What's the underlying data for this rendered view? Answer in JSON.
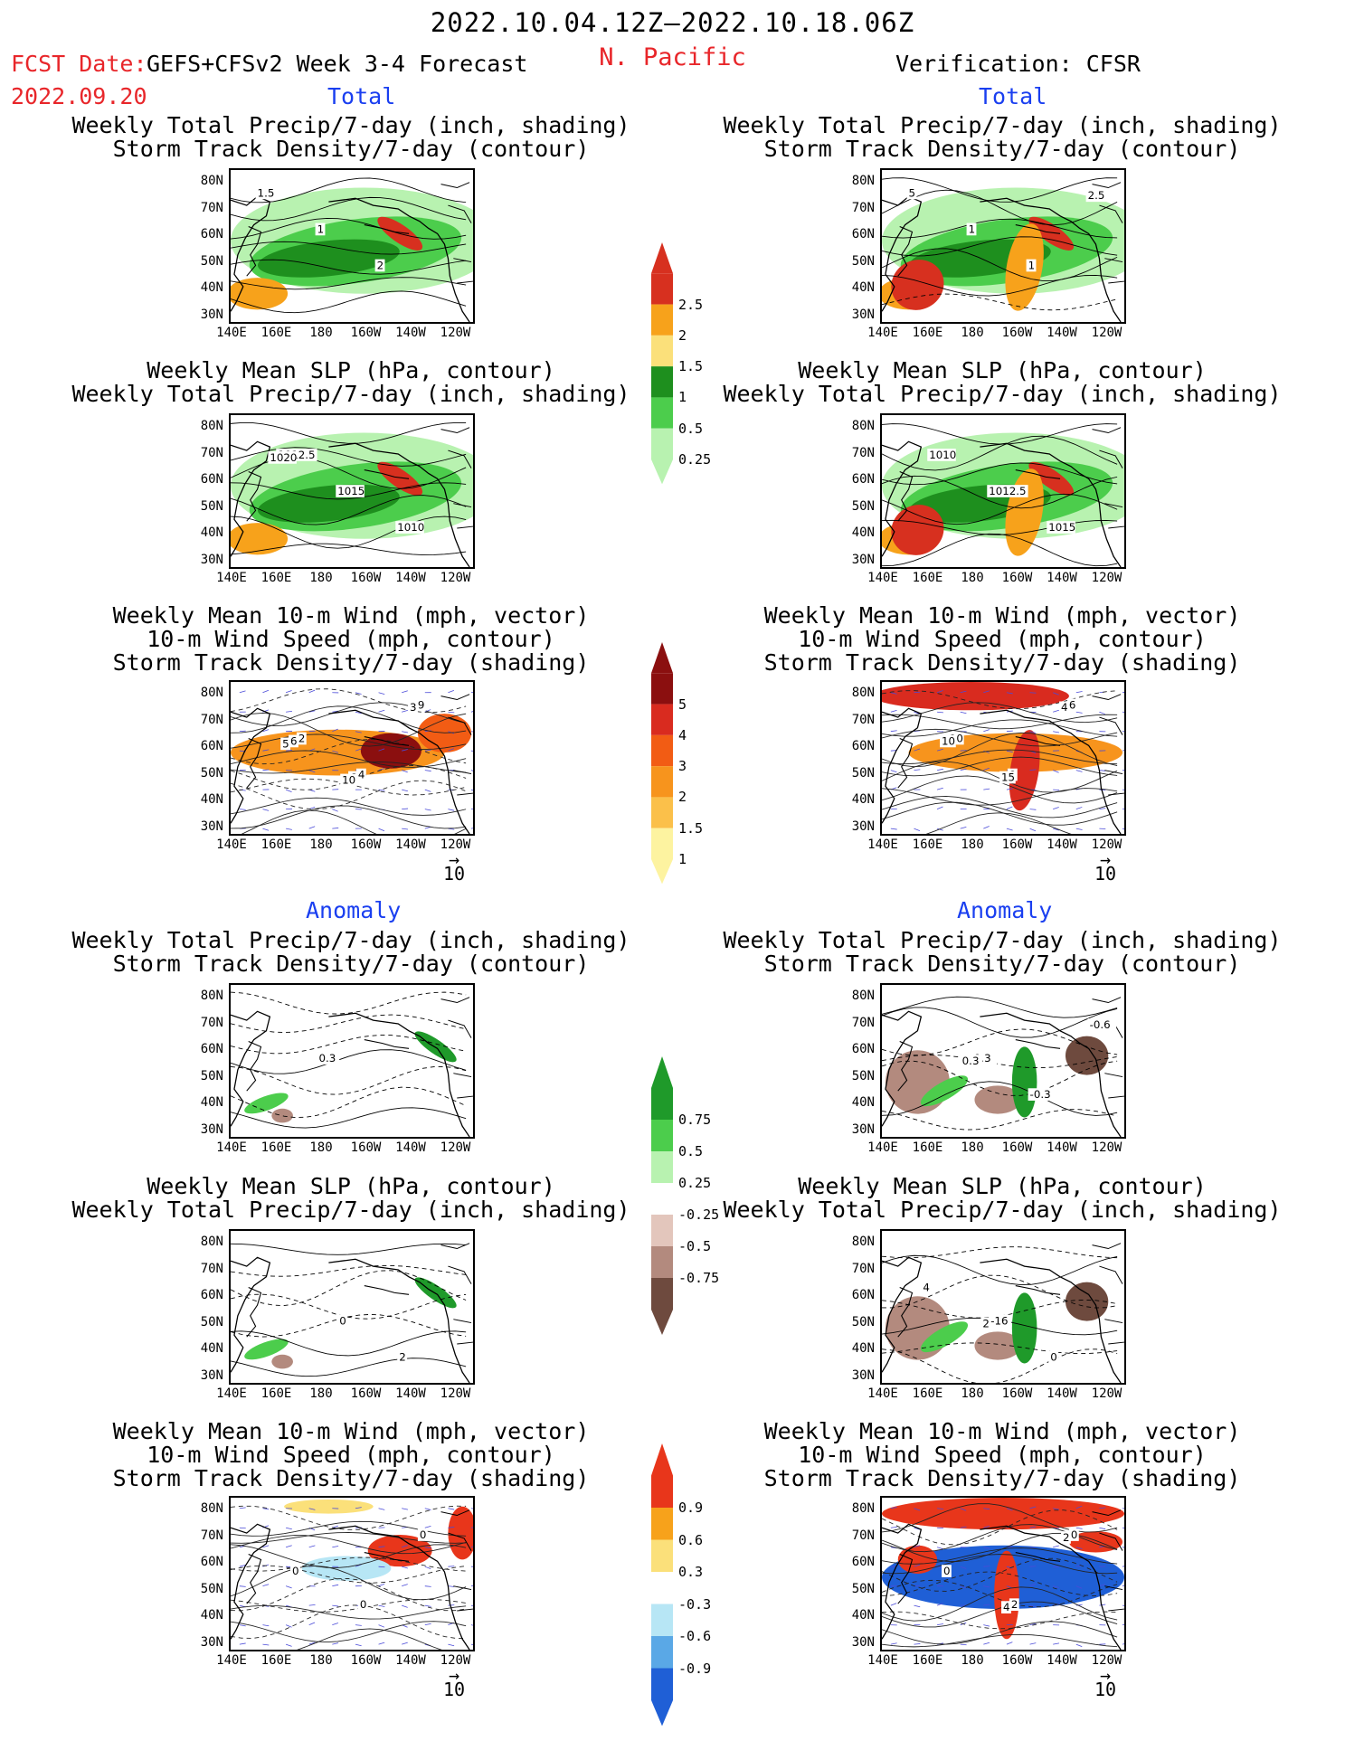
{
  "header": {
    "title": "2022.10.04.12Z—2022.10.18.06Z",
    "region": "N. Pacific",
    "fcst_label": "FCST Date:",
    "fcst_model": "GEFS+CFSv2 Week 3-4 Forecast",
    "fcst_date": "2022.09.20",
    "verification": "Verification: CFSR"
  },
  "sections": {
    "total": "Total",
    "anomaly": "Anomaly"
  },
  "axes": {
    "lat": [
      "80N",
      "70N",
      "60N",
      "50N",
      "40N",
      "30N"
    ],
    "lon": [
      "140E",
      "160E",
      "180",
      "160W",
      "140W",
      "120W"
    ]
  },
  "panel_titles": {
    "precip_storm": [
      "Weekly Total Precip/7-day (inch, shading)",
      "Storm Track Density/7-day (contour)"
    ],
    "slp_precip": [
      "Weekly Mean SLP (hPa, contour)",
      "Weekly Total Precip/7-day (inch, shading)"
    ],
    "wind": [
      "Weekly Mean 10-m Wind (mph, vector)",
      "10-m Wind Speed (mph, contour)",
      "Storm Track Density/7-day (shading)"
    ]
  },
  "vector_ref": "10",
  "colorbars": {
    "precip_total": {
      "labels": [
        "2.5",
        "2",
        "1.5",
        "1",
        "0.5",
        "0.25"
      ],
      "colors": [
        "#d7301f",
        "#f7a21b",
        "#fbe07a",
        "#1e8f1e",
        "#4ccd4c",
        "#b8f2b0"
      ]
    },
    "storm_total": {
      "labels": [
        "5",
        "4",
        "3",
        "2",
        "1.5",
        "1"
      ],
      "colors": [
        "#8b0f0f",
        "#d92b1f",
        "#f25c14",
        "#f7941d",
        "#fbc04a",
        "#fdf3a0"
      ]
    },
    "precip_anom": {
      "labels": [
        "0.75",
        "0.5",
        "0.25",
        "-0.25",
        "-0.5",
        "-0.75"
      ],
      "colors": [
        "#1f9a2a",
        "#4ccd4c",
        "#b8f2b0",
        "#ffffff",
        "#e3c6bc",
        "#b38a7e",
        "#6e4a3e"
      ]
    },
    "storm_anom": {
      "labels": [
        "0.9",
        "0.6",
        "0.3",
        "-0.3",
        "-0.6",
        "-0.9"
      ],
      "colors": [
        "#e8361b",
        "#f7a21b",
        "#fbe07a",
        "#ffffff",
        "#b7e6f5",
        "#5aa8e6",
        "#1f5fd6"
      ]
    }
  },
  "contour_labels": {
    "p1_left": [
      "1.5",
      "1",
      "2"
    ],
    "p1_right": [
      "5",
      "1",
      "1",
      "2.5"
    ],
    "p2_left": [
      "1012.5",
      "1015",
      "1010",
      "1020"
    ],
    "p2_right": [
      "1010",
      "1012.5",
      "1015"
    ],
    "p3_left": [
      "2",
      "4",
      "9",
      "6",
      "6",
      "3",
      "5",
      "10"
    ],
    "p3_right": [
      "10",
      "9",
      "6",
      "10",
      "15",
      "4"
    ],
    "p4_left": [
      "0.3"
    ],
    "p4_right": [
      "-0.3",
      "-0.3",
      "-0.6",
      "0.3"
    ],
    "p5_left": [
      "0",
      "2"
    ],
    "p5_right": [
      "-16",
      "0",
      "4",
      "2"
    ],
    "p6_left": [
      "0",
      "0",
      "0"
    ],
    "p6_right": [
      "2",
      "0",
      "0",
      "4",
      "2"
    ]
  }
}
